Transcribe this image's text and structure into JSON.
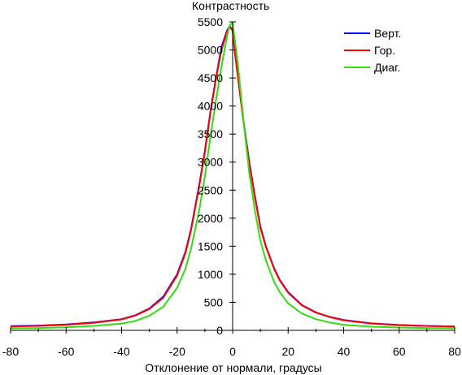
{
  "chart_data": {
    "type": "line",
    "title": "",
    "ylabel": "Контрастность",
    "xlabel": "Отклонение от нормали, градусы",
    "xlim": [
      -80,
      80
    ],
    "ylim": [
      0,
      5500
    ],
    "x_ticks": [
      -80,
      -60,
      -40,
      -20,
      0,
      20,
      40,
      60,
      80
    ],
    "y_ticks": [
      0,
      500,
      1000,
      1500,
      2000,
      2500,
      3000,
      3500,
      4000,
      4500,
      5000,
      5500
    ],
    "grid": false,
    "legend_position": "top-right",
    "series": [
      {
        "name": "Верт.",
        "color": "#0000ff",
        "x": [
          -80,
          -70,
          -60,
          -50,
          -40,
          -35,
          -30,
          -25,
          -20,
          -17,
          -15,
          -12,
          -10,
          -8,
          -6,
          -4,
          -2,
          -1,
          0,
          1,
          2,
          4,
          6,
          8,
          10,
          12,
          15,
          17,
          20,
          25,
          30,
          35,
          40,
          50,
          60,
          70,
          80
        ],
        "values": [
          75,
          85,
          105,
          140,
          200,
          270,
          390,
          600,
          1000,
          1400,
          1800,
          2600,
          3200,
          3900,
          4500,
          5050,
          5350,
          5420,
          5350,
          4900,
          4500,
          3700,
          3000,
          2400,
          1850,
          1500,
          1100,
          900,
          680,
          450,
          320,
          240,
          185,
          125,
          95,
          80,
          70
        ]
      },
      {
        "name": "Гор.",
        "color": "#ff0000",
        "x": [
          -80,
          -70,
          -60,
          -50,
          -40,
          -35,
          -30,
          -25,
          -20,
          -17,
          -15,
          -12,
          -10,
          -8,
          -6,
          -4,
          -2,
          -1,
          0,
          1,
          2,
          4,
          6,
          8,
          10,
          12,
          15,
          17,
          20,
          25,
          30,
          35,
          40,
          50,
          60,
          70,
          80
        ],
        "values": [
          70,
          80,
          100,
          135,
          195,
          265,
          380,
          580,
          980,
          1380,
          1780,
          2580,
          3180,
          3880,
          4480,
          5000,
          5330,
          5410,
          5340,
          4880,
          4480,
          3680,
          2980,
          2380,
          1830,
          1490,
          1090,
          890,
          670,
          445,
          315,
          238,
          180,
          122,
          92,
          78,
          68
        ]
      },
      {
        "name": "Диаг.",
        "color": "#33dd11",
        "x": [
          -80,
          -70,
          -60,
          -50,
          -40,
          -35,
          -30,
          -25,
          -20,
          -17,
          -15,
          -12,
          -10,
          -8,
          -6,
          -4,
          -2,
          -1,
          0,
          1,
          2,
          4,
          6,
          8,
          10,
          12,
          15,
          17,
          20,
          25,
          30,
          35,
          40,
          50,
          60,
          70,
          80
        ],
        "values": [
          35,
          42,
          55,
          80,
          120,
          170,
          260,
          420,
          760,
          1100,
          1450,
          2150,
          2750,
          3450,
          4100,
          4700,
          5250,
          5450,
          5480,
          5100,
          4700,
          3700,
          2800,
          2150,
          1600,
          1250,
          860,
          680,
          480,
          300,
          200,
          140,
          100,
          65,
          50,
          42,
          38
        ]
      }
    ]
  }
}
